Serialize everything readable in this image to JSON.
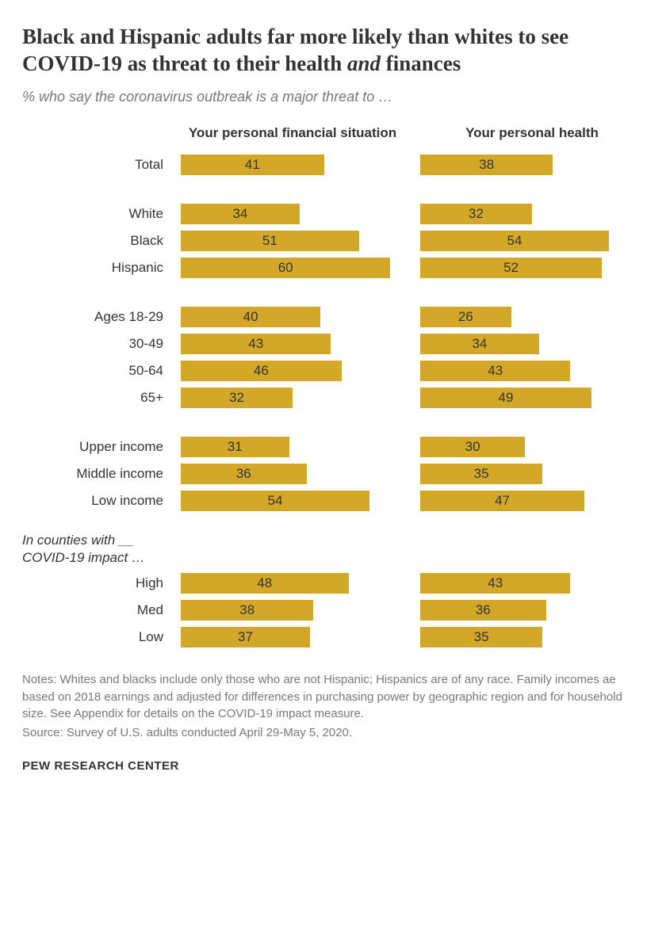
{
  "title_a": "Black and Hispanic adults far more likely than whites to see COVID-19 as threat to their health ",
  "title_italic": "and",
  "title_b": " finances",
  "subtitle": "% who say the coronavirus outbreak is a major threat to …",
  "columns": {
    "financial": "Your personal financial situation",
    "health": "Your personal health"
  },
  "bar_color": "#d3a829",
  "max_value": 64,
  "groups": [
    {
      "rows": [
        {
          "label": "Total",
          "financial": 41,
          "health": 38
        }
      ]
    },
    {
      "rows": [
        {
          "label": "White",
          "financial": 34,
          "health": 32
        },
        {
          "label": "Black",
          "financial": 51,
          "health": 54
        },
        {
          "label": "Hispanic",
          "financial": 60,
          "health": 52
        }
      ]
    },
    {
      "rows": [
        {
          "label": "Ages 18-29",
          "financial": 40,
          "health": 26
        },
        {
          "label": "30-49",
          "financial": 43,
          "health": 34
        },
        {
          "label": "50-64",
          "financial": 46,
          "health": 43
        },
        {
          "label": "65+",
          "financial": 32,
          "health": 49
        }
      ]
    },
    {
      "rows": [
        {
          "label": "Upper income",
          "financial": 31,
          "health": 30
        },
        {
          "label": "Middle income",
          "financial": 36,
          "health": 35
        },
        {
          "label": "Low income",
          "financial": 54,
          "health": 47
        }
      ]
    },
    {
      "note": "In counties with __ COVID-19 impact …",
      "rows": [
        {
          "label": "High",
          "financial": 48,
          "health": 43
        },
        {
          "label": "Med",
          "financial": 38,
          "health": 36
        },
        {
          "label": "Low",
          "financial": 37,
          "health": 35
        }
      ]
    }
  ],
  "notes": "Notes: Whites and blacks include only those who are not Hispanic; Hispanics are of any race. Family incomes ae based on 2018 earnings and adjusted for differences in purchasing power by geographic region and for household size. See Appendix for details on the COVID-19 impact measure.",
  "source": "Source: Survey of U.S. adults conducted April 29-May 5, 2020.",
  "footer": "PEW RESEARCH CENTER"
}
